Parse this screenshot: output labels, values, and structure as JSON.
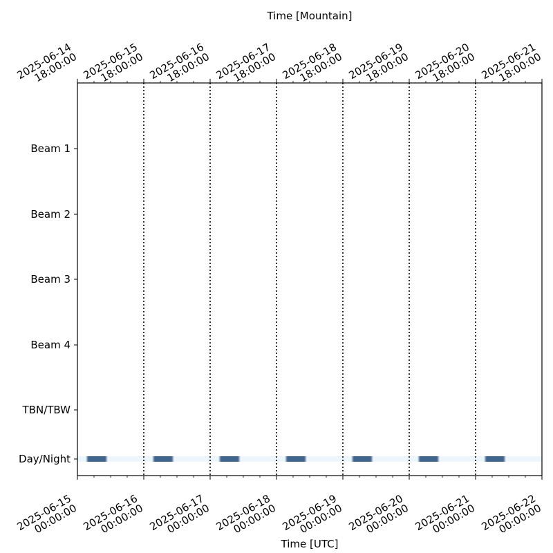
{
  "chart_data": {
    "type": "heatmap",
    "title": "",
    "xlabel": "Time [UTC]",
    "x2label": "Time [Mountain]",
    "x_range": [
      "2025-06-15 00:00:00",
      "2025-06-22 00:00:00"
    ],
    "bottom_ticks": [
      "2025-06-15\n00:00:00",
      "2025-06-16\n00:00:00",
      "2025-06-17\n00:00:00",
      "2025-06-18\n00:00:00",
      "2025-06-19\n00:00:00",
      "2025-06-20\n00:00:00",
      "2025-06-21\n00:00:00",
      "2025-06-22\n00:00:00"
    ],
    "top_ticks": [
      "2025-06-14\n18:00:00",
      "2025-06-15\n18:00:00",
      "2025-06-16\n18:00:00",
      "2025-06-17\n18:00:00",
      "2025-06-18\n18:00:00",
      "2025-06-19\n18:00:00",
      "2025-06-20\n18:00:00",
      "2025-06-21\n18:00:00"
    ],
    "rows": [
      "Beam 1",
      "Beam 2",
      "Beam 3",
      "Beam 4",
      "TBN/TBW",
      "Day/Night"
    ],
    "day_boundaries_utc": [
      "2025-06-16 00:00:00",
      "2025-06-17 00:00:00",
      "2025-06-18 00:00:00",
      "2025-06-19 00:00:00",
      "2025-06-20 00:00:00",
      "2025-06-21 00:00:00"
    ],
    "night_intervals_utc": [
      [
        "2025-06-15 03:00:00",
        "2025-06-15 11:00:00"
      ],
      [
        "2025-06-16 03:00:00",
        "2025-06-16 11:00:00"
      ],
      [
        "2025-06-17 03:00:00",
        "2025-06-17 11:00:00"
      ],
      [
        "2025-06-18 03:00:00",
        "2025-06-18 11:00:00"
      ],
      [
        "2025-06-19 03:00:00",
        "2025-06-19 11:00:00"
      ],
      [
        "2025-06-20 03:00:00",
        "2025-06-20 11:00:00"
      ],
      [
        "2025-06-21 03:00:00",
        "2025-06-21 11:00:00"
      ]
    ],
    "colors": {
      "night": "#40668f",
      "day": "#eef6fd",
      "boundary": "#000000"
    },
    "grid": false
  }
}
